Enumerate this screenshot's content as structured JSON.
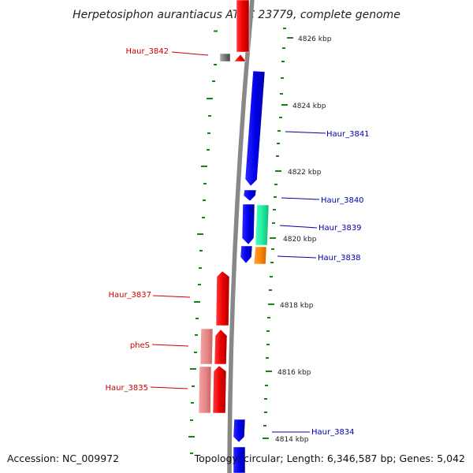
{
  "title": "Herpetosiphon aurantiacus ATCC 23779, complete genome",
  "accession": "Accession: NC_009972",
  "topology": "Topology: circular; Length: 6,346,587 bp; Genes: 5,042",
  "colors": {
    "minus_strand_label": "#cc0000",
    "plus_strand_label": "#0000aa",
    "backbone": "#888888",
    "tick": "#118811"
  },
  "scale_ticks": [
    {
      "label": "4826 kbp"
    },
    {
      "label": "4824 kbp"
    },
    {
      "label": "4822 kbp"
    },
    {
      "label": "4820 kbp"
    },
    {
      "label": "4818 kbp"
    },
    {
      "label": "4816 kbp"
    },
    {
      "label": "4814 kbp"
    }
  ],
  "gene_labels": [
    {
      "name": "Haur_3842",
      "strand": "minus"
    },
    {
      "name": "Haur_3841",
      "strand": "plus"
    },
    {
      "name": "Haur_3840",
      "strand": "plus"
    },
    {
      "name": "Haur_3839",
      "strand": "plus"
    },
    {
      "name": "Haur_3838",
      "strand": "plus"
    },
    {
      "name": "Haur_3837",
      "strand": "minus"
    },
    {
      "name": "pheS",
      "strand": "minus"
    },
    {
      "name": "Haur_3835",
      "strand": "minus"
    },
    {
      "name": "Haur_3834",
      "strand": "plus"
    }
  ]
}
